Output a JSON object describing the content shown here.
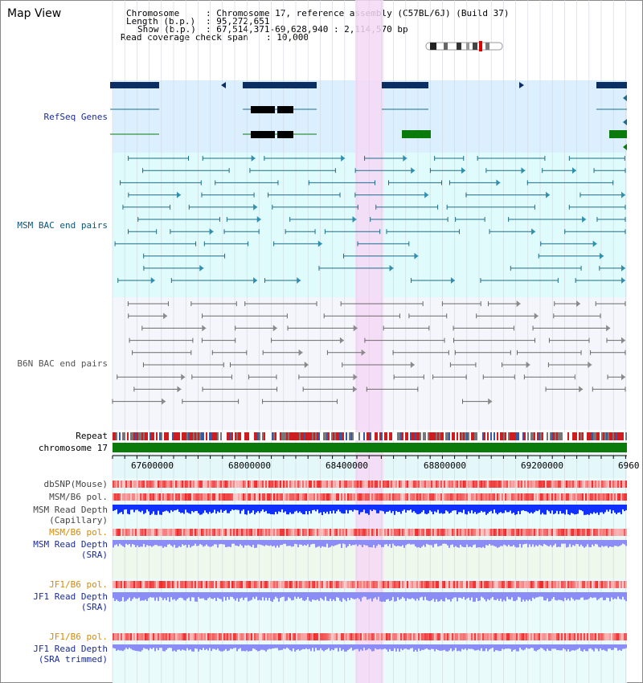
{
  "app_title": "Map View",
  "header": {
    "chromosome_key": "Chromosome",
    "chromosome_value": ": Chromosome 17, reference assembly (C57BL/6J) (Build 37)",
    "length_key": "Length (b.p.)",
    "length_value": ": 95,272,651",
    "show_key": "Show (b.p.)",
    "show_value": ": 67,514,371-69,628,940 : 2,114,570 bp",
    "coverage_key": "Read coverage check span",
    "coverage_value": ": 10,000"
  },
  "tracks": {
    "refseq": "RefSeq Genes",
    "msm_bac": "MSM BAC end pairs",
    "b6n_bac": "B6N BAC end pairs",
    "repeat": "Repeat",
    "chromosome": "chromosome 17",
    "dbsnp": "dbSNP(Mouse)",
    "msm_b6_pol_1": "MSM/B6 pol.",
    "msm_read_depth_cap_1": "MSM Read Depth",
    "msm_read_depth_cap_2": "(Capillary)",
    "msm_b6_pol_2": "MSM/B6 pol.",
    "msm_read_depth_sra_1": "MSM Read Depth",
    "msm_read_depth_sra_2": "(SRA)",
    "jf1_b6_pol_1": "JF1/B6 pol.",
    "jf1_read_depth_sra_1": "JF1 Read Depth",
    "jf1_read_depth_sra_2": "(SRA)",
    "jf1_b6_pol_2": "JF1/B6 pol.",
    "jf1_read_depth_trim_1": "JF1 Read Depth",
    "jf1_read_depth_trim_2": "(SRA trimmed)"
  },
  "axis": {
    "ticks": [
      "67600000",
      "68000000",
      "68400000",
      "68800000",
      "69200000",
      "6960"
    ]
  },
  "colors": {
    "refseq_bg": "#dcefff",
    "msm_bg": "#e0fbfb",
    "b6n_bg": "#f4f6fb",
    "highlight": "#f6d8f6",
    "gene_dark": "#0b2f63",
    "gene_green": "#0a7a0a",
    "msm_line": "#1d6d8a",
    "b6n_line": "#6a6a6a",
    "label_blue": "#1a2c9c",
    "label_orange": "#d98a00",
    "depth_blue": "#1030ff",
    "depth_light": "#8c8cf6"
  }
}
